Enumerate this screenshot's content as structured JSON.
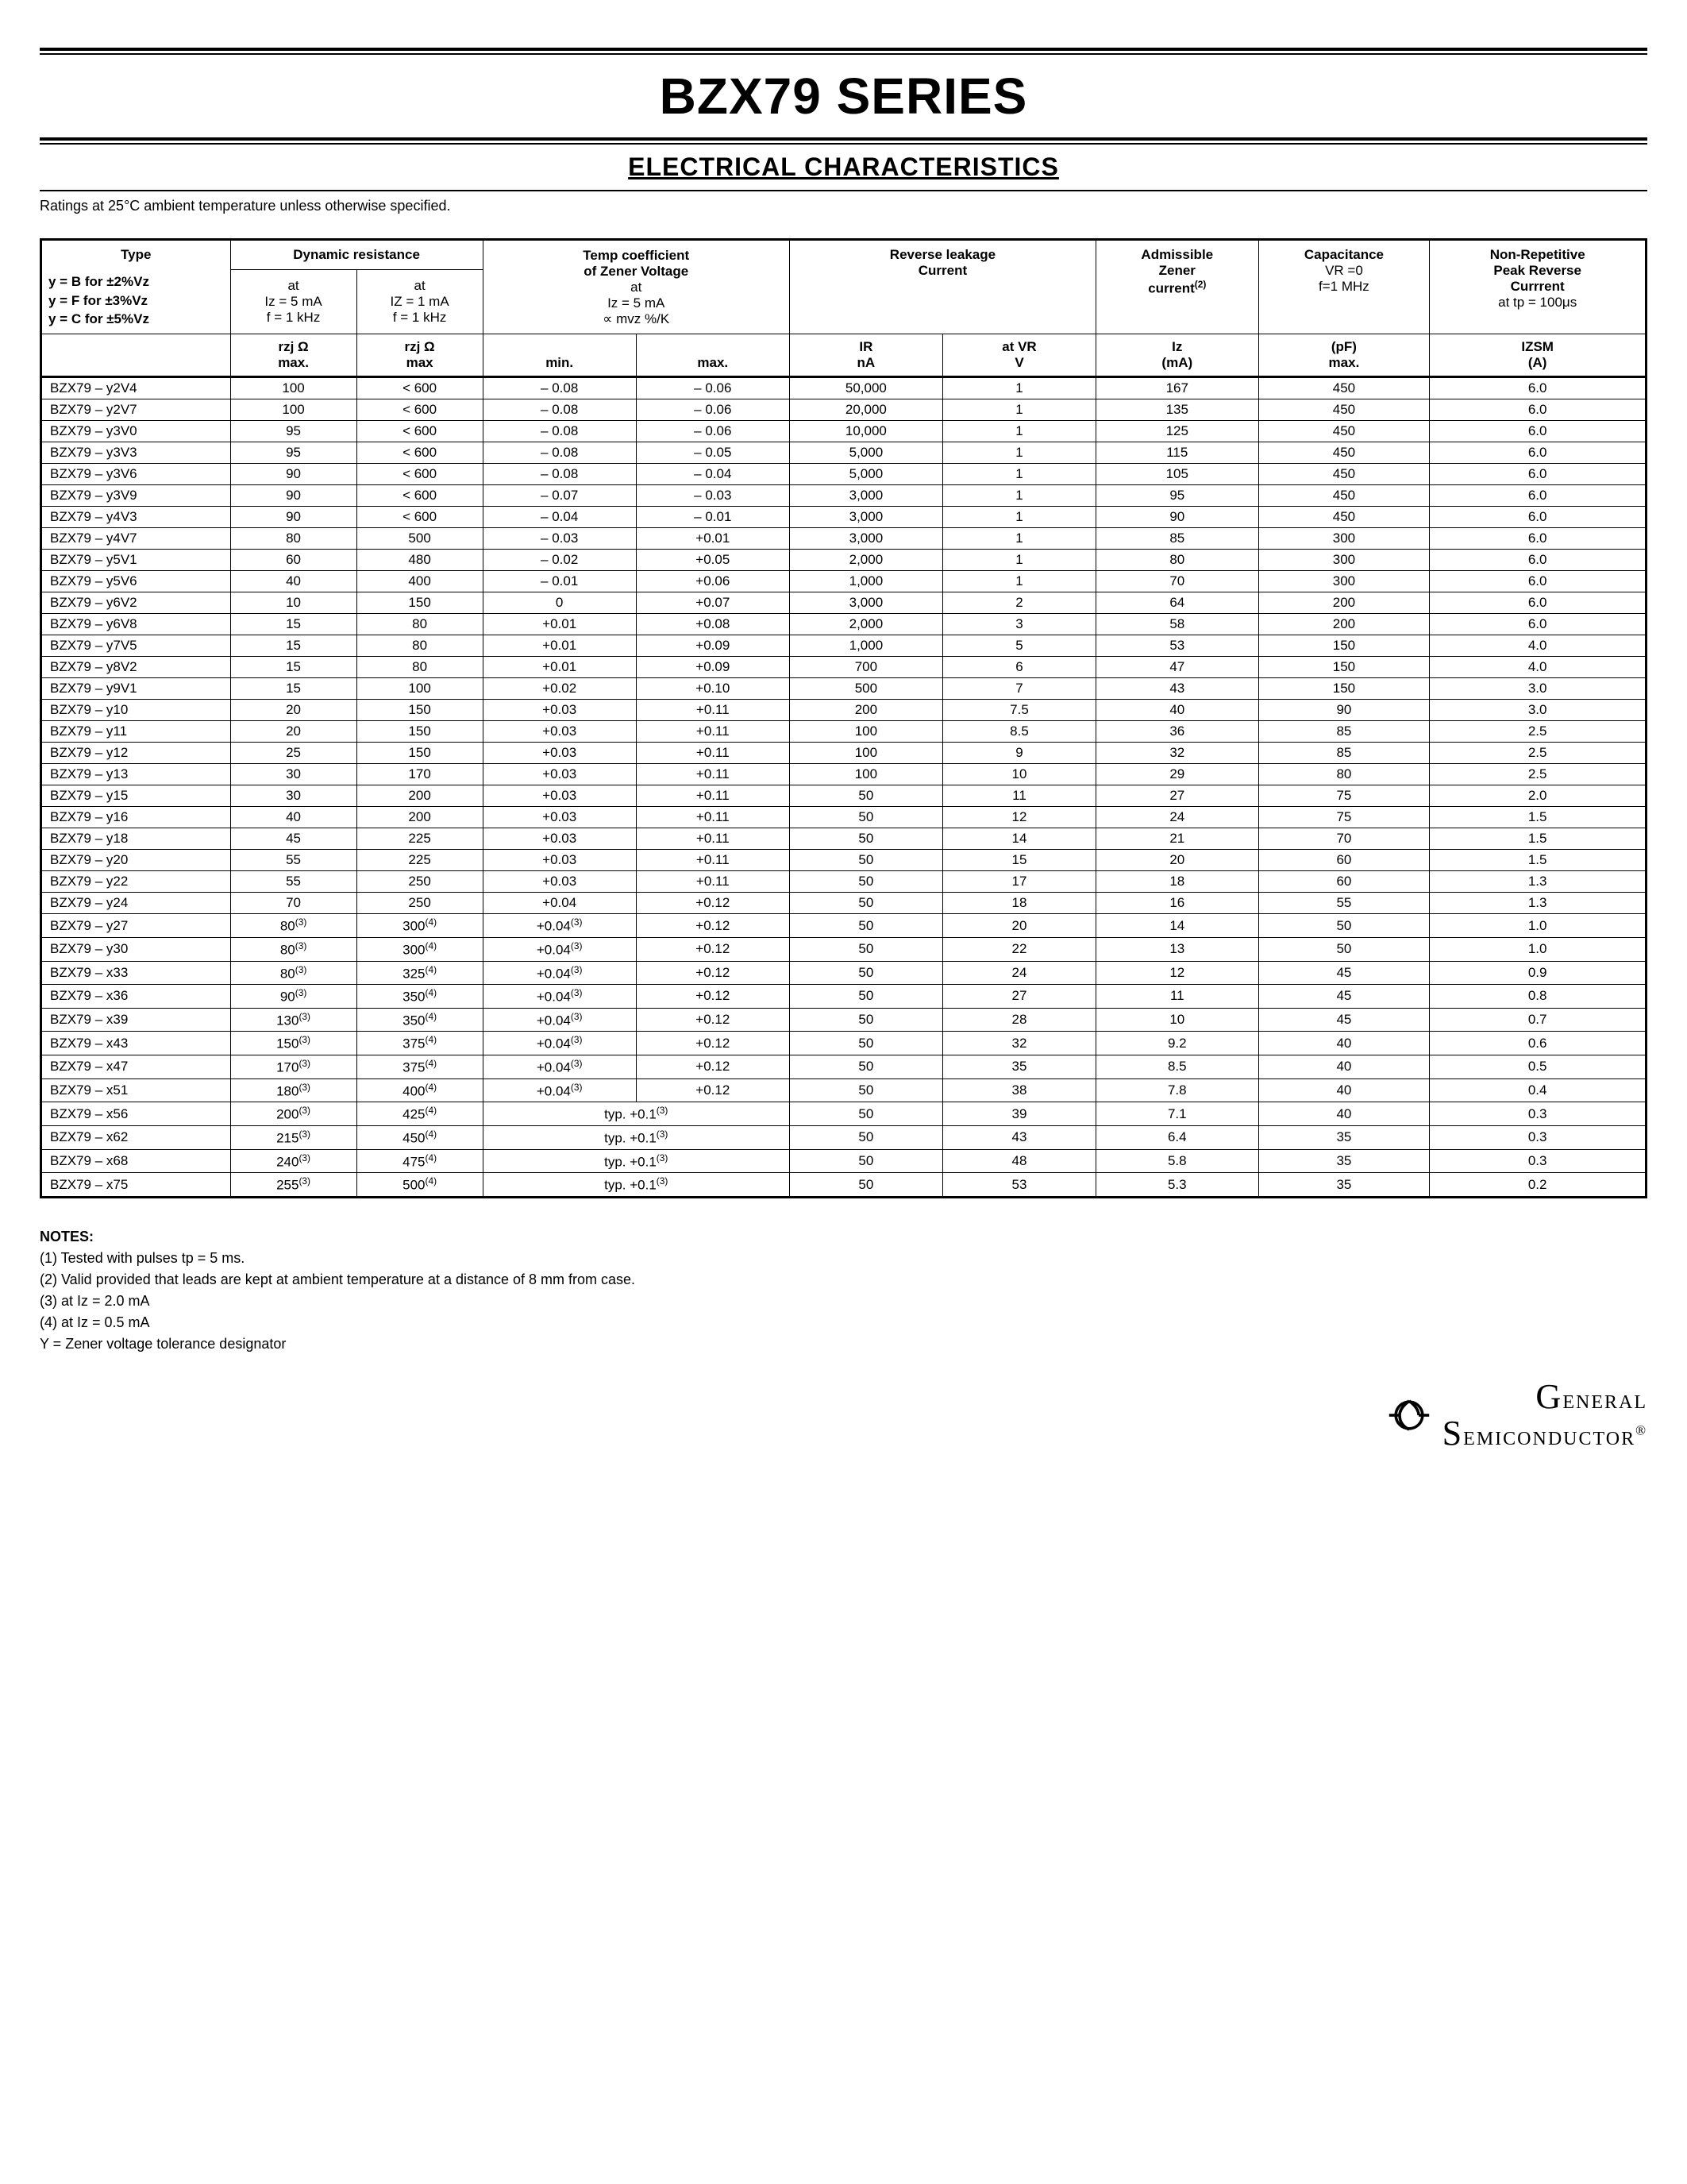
{
  "title": "BZX79 SERIES",
  "section": "ELECTRICAL CHARACTERISTICS",
  "ratingsNote": "Ratings at 25°C ambient temperature unless otherwise specified.",
  "headers": {
    "type": "Type",
    "typeLegend1": "y = B for ±2%Vz",
    "typeLegend2": "y = F for ±3%Vz",
    "typeLegend3": "y = C for ±5%Vz",
    "dynRes": "Dynamic resistance",
    "at5ma_l1": "at",
    "at5ma_l2": "Iz = 5 mA",
    "at5ma_l3": "f = 1 kHz",
    "at1ma_l1": "at",
    "at1ma_l2": "IZ = 1 mA",
    "at1ma_l3": "f = 1 kHz",
    "rzj": "rzj Ω",
    "max": "max",
    "tempCoef_l1": "Temp coefficient",
    "tempCoef_l2": "of Zener Voltage",
    "tempCoef_l3": "at",
    "tempCoef_l4": "Iz = 5 mA",
    "tempCoef_l5": "∝ mvz %/K",
    "min": "min.",
    "maxDot": "max.",
    "revLeak_l1": "Reverse leakage",
    "revLeak_l2": "Current",
    "ir_l1": "IR",
    "ir_l2": "nA",
    "vr_l1": "at VR",
    "vr_l2": "V",
    "admZener_l1": "Admissible",
    "admZener_l2": "Zener",
    "admZener_l3": "current",
    "admZener_sup": "(2)",
    "iz_l1": "Iz",
    "iz_l2": "(mA)",
    "cap_l1": "Capacitance",
    "cap_l2": "VR =0",
    "cap_l3": "f=1 MHz",
    "pf_l1": "(pF)",
    "pf_l2": "max.",
    "npr_l1": "Non-Repetitive",
    "npr_l2": "Peak Reverse",
    "npr_l3": "Currrent",
    "npr_l4": "at tp = 100μs",
    "izsm_l1": "IZSM",
    "izsm_l2": "(A)"
  },
  "rows": [
    {
      "type": "BZX79 – y2V4",
      "dr5": "100",
      "dr1": "< 600",
      "tcmin": "– 0.08",
      "tcmax": "– 0.06",
      "ir": "50,000",
      "vr": "1",
      "iz": "167",
      "pf": "450",
      "izsm": "6.0"
    },
    {
      "type": "BZX79 – y2V7",
      "dr5": "100",
      "dr1": "< 600",
      "tcmin": "– 0.08",
      "tcmax": "– 0.06",
      "ir": "20,000",
      "vr": "1",
      "iz": "135",
      "pf": "450",
      "izsm": "6.0"
    },
    {
      "type": "BZX79 – y3V0",
      "dr5": "95",
      "dr1": "< 600",
      "tcmin": "– 0.08",
      "tcmax": "– 0.06",
      "ir": "10,000",
      "vr": "1",
      "iz": "125",
      "pf": "450",
      "izsm": "6.0"
    },
    {
      "type": "BZX79 – y3V3",
      "dr5": "95",
      "dr1": "< 600",
      "tcmin": "– 0.08",
      "tcmax": "– 0.05",
      "ir": "5,000",
      "vr": "1",
      "iz": "115",
      "pf": "450",
      "izsm": "6.0"
    },
    {
      "type": "BZX79 – y3V6",
      "dr5": "90",
      "dr1": "< 600",
      "tcmin": "– 0.08",
      "tcmax": "– 0.04",
      "ir": "5,000",
      "vr": "1",
      "iz": "105",
      "pf": "450",
      "izsm": "6.0"
    },
    {
      "type": "BZX79 – y3V9",
      "dr5": "90",
      "dr1": "< 600",
      "tcmin": "– 0.07",
      "tcmax": "– 0.03",
      "ir": "3,000",
      "vr": "1",
      "iz": "95",
      "pf": "450",
      "izsm": "6.0"
    },
    {
      "type": "BZX79 – y4V3",
      "dr5": "90",
      "dr1": "< 600",
      "tcmin": "– 0.04",
      "tcmax": "– 0.01",
      "ir": "3,000",
      "vr": "1",
      "iz": "90",
      "pf": "450",
      "izsm": "6.0"
    },
    {
      "type": "BZX79 – y4V7",
      "dr5": "80",
      "dr1": "500",
      "tcmin": "– 0.03",
      "tcmax": "+0.01",
      "ir": "3,000",
      "vr": "1",
      "iz": "85",
      "pf": "300",
      "izsm": "6.0"
    },
    {
      "type": "BZX79 – y5V1",
      "dr5": "60",
      "dr1": "480",
      "tcmin": "– 0.02",
      "tcmax": "+0.05",
      "ir": "2,000",
      "vr": "1",
      "iz": "80",
      "pf": "300",
      "izsm": "6.0"
    },
    {
      "type": "BZX79 – y5V6",
      "dr5": "40",
      "dr1": "400",
      "tcmin": "– 0.01",
      "tcmax": "+0.06",
      "ir": "1,000",
      "vr": "1",
      "iz": "70",
      "pf": "300",
      "izsm": "6.0"
    },
    {
      "type": "BZX79 – y6V2",
      "dr5": "10",
      "dr1": "150",
      "tcmin": "0",
      "tcmax": "+0.07",
      "ir": "3,000",
      "vr": "2",
      "iz": "64",
      "pf": "200",
      "izsm": "6.0"
    },
    {
      "type": "BZX79 – y6V8",
      "dr5": "15",
      "dr1": "80",
      "tcmin": "+0.01",
      "tcmax": "+0.08",
      "ir": "2,000",
      "vr": "3",
      "iz": "58",
      "pf": "200",
      "izsm": "6.0"
    },
    {
      "type": "BZX79 – y7V5",
      "dr5": "15",
      "dr1": "80",
      "tcmin": "+0.01",
      "tcmax": "+0.09",
      "ir": "1,000",
      "vr": "5",
      "iz": "53",
      "pf": "150",
      "izsm": "4.0"
    },
    {
      "type": "BZX79 – y8V2",
      "dr5": "15",
      "dr1": "80",
      "tcmin": "+0.01",
      "tcmax": "+0.09",
      "ir": "700",
      "vr": "6",
      "iz": "47",
      "pf": "150",
      "izsm": "4.0"
    },
    {
      "type": "BZX79 – y9V1",
      "dr5": "15",
      "dr1": "100",
      "tcmin": "+0.02",
      "tcmax": "+0.10",
      "ir": "500",
      "vr": "7",
      "iz": "43",
      "pf": "150",
      "izsm": "3.0"
    },
    {
      "type": "BZX79 – y10",
      "dr5": "20",
      "dr1": "150",
      "tcmin": "+0.03",
      "tcmax": "+0.11",
      "ir": "200",
      "vr": "7.5",
      "iz": "40",
      "pf": "90",
      "izsm": "3.0"
    },
    {
      "type": "BZX79 – y11",
      "dr5": "20",
      "dr1": "150",
      "tcmin": "+0.03",
      "tcmax": "+0.11",
      "ir": "100",
      "vr": "8.5",
      "iz": "36",
      "pf": "85",
      "izsm": "2.5"
    },
    {
      "type": "BZX79 – y12",
      "dr5": "25",
      "dr1": "150",
      "tcmin": "+0.03",
      "tcmax": "+0.11",
      "ir": "100",
      "vr": "9",
      "iz": "32",
      "pf": "85",
      "izsm": "2.5"
    },
    {
      "type": "BZX79 – y13",
      "dr5": "30",
      "dr1": "170",
      "tcmin": "+0.03",
      "tcmax": "+0.11",
      "ir": "100",
      "vr": "10",
      "iz": "29",
      "pf": "80",
      "izsm": "2.5"
    },
    {
      "type": "BZX79 – y15",
      "dr5": "30",
      "dr1": "200",
      "tcmin": "+0.03",
      "tcmax": "+0.11",
      "ir": "50",
      "vr": "11",
      "iz": "27",
      "pf": "75",
      "izsm": "2.0"
    },
    {
      "type": "BZX79 – y16",
      "dr5": "40",
      "dr1": "200",
      "tcmin": "+0.03",
      "tcmax": "+0.11",
      "ir": "50",
      "vr": "12",
      "iz": "24",
      "pf": "75",
      "izsm": "1.5"
    },
    {
      "type": "BZX79 – y18",
      "dr5": "45",
      "dr1": "225",
      "tcmin": "+0.03",
      "tcmax": "+0.11",
      "ir": "50",
      "vr": "14",
      "iz": "21",
      "pf": "70",
      "izsm": "1.5"
    },
    {
      "type": "BZX79 – y20",
      "dr5": "55",
      "dr1": "225",
      "tcmin": "+0.03",
      "tcmax": "+0.11",
      "ir": "50",
      "vr": "15",
      "iz": "20",
      "pf": "60",
      "izsm": "1.5"
    },
    {
      "type": "BZX79 – y22",
      "dr5": "55",
      "dr1": "250",
      "tcmin": "+0.03",
      "tcmax": "+0.11",
      "ir": "50",
      "vr": "17",
      "iz": "18",
      "pf": "60",
      "izsm": "1.3"
    },
    {
      "type": "BZX79 – y24",
      "dr5": "70",
      "dr1": "250",
      "tcmin": "+0.04",
      "tcmax": "+0.12",
      "ir": "50",
      "vr": "18",
      "iz": "16",
      "pf": "55",
      "izsm": "1.3"
    },
    {
      "type": "BZX79 – y27",
      "dr5": "80",
      "dr5s": "(3)",
      "dr1": "300",
      "dr1s": "(4)",
      "tcmin": "+0.04",
      "tcmins": "(3)",
      "tcmax": "+0.12",
      "ir": "50",
      "vr": "20",
      "iz": "14",
      "pf": "50",
      "izsm": "1.0"
    },
    {
      "type": "BZX79 – y30",
      "dr5": "80",
      "dr5s": "(3)",
      "dr1": "300",
      "dr1s": "(4)",
      "tcmin": "+0.04",
      "tcmins": "(3)",
      "tcmax": "+0.12",
      "ir": "50",
      "vr": "22",
      "iz": "13",
      "pf": "50",
      "izsm": "1.0"
    },
    {
      "type": "BZX79 – x33",
      "dr5": "80",
      "dr5s": "(3)",
      "dr1": "325",
      "dr1s": "(4)",
      "tcmin": "+0.04",
      "tcmins": "(3)",
      "tcmax": "+0.12",
      "ir": "50",
      "vr": "24",
      "iz": "12",
      "pf": "45",
      "izsm": "0.9"
    },
    {
      "type": "BZX79 – x36",
      "dr5": "90",
      "dr5s": "(3)",
      "dr1": "350",
      "dr1s": "(4)",
      "tcmin": "+0.04",
      "tcmins": "(3)",
      "tcmax": "+0.12",
      "ir": "50",
      "vr": "27",
      "iz": "11",
      "pf": "45",
      "izsm": "0.8"
    },
    {
      "type": "BZX79 – x39",
      "dr5": "130",
      "dr5s": "(3)",
      "dr1": "350",
      "dr1s": "(4)",
      "tcmin": "+0.04",
      "tcmins": "(3)",
      "tcmax": "+0.12",
      "ir": "50",
      "vr": "28",
      "iz": "10",
      "pf": "45",
      "izsm": "0.7"
    },
    {
      "type": "BZX79 – x43",
      "dr5": "150",
      "dr5s": "(3)",
      "dr1": "375",
      "dr1s": "(4)",
      "tcmin": "+0.04",
      "tcmins": "(3)",
      "tcmax": "+0.12",
      "ir": "50",
      "vr": "32",
      "iz": "9.2",
      "pf": "40",
      "izsm": "0.6"
    },
    {
      "type": "BZX79 – x47",
      "dr5": "170",
      "dr5s": "(3)",
      "dr1": "375",
      "dr1s": "(4)",
      "tcmin": "+0.04",
      "tcmins": "(3)",
      "tcmax": "+0.12",
      "ir": "50",
      "vr": "35",
      "iz": "8.5",
      "pf": "40",
      "izsm": "0.5"
    },
    {
      "type": "BZX79 – x51",
      "dr5": "180",
      "dr5s": "(3)",
      "dr1": "400",
      "dr1s": "(4)",
      "tcmin": "+0.04",
      "tcmins": "(3)",
      "tcmax": "+0.12",
      "ir": "50",
      "vr": "38",
      "iz": "7.8",
      "pf": "40",
      "izsm": "0.4"
    },
    {
      "type": "BZX79 – x56",
      "dr5": "200",
      "dr5s": "(3)",
      "dr1": "425",
      "dr1s": "(4)",
      "tctyp": "typ. +0.1",
      "tctypsup": "(3)",
      "ir": "50",
      "vr": "39",
      "iz": "7.1",
      "pf": "40",
      "izsm": "0.3"
    },
    {
      "type": "BZX79 – x62",
      "dr5": "215",
      "dr5s": "(3)",
      "dr1": "450",
      "dr1s": "(4)",
      "tctyp": "typ. +0.1",
      "tctypsup": "(3)",
      "ir": "50",
      "vr": "43",
      "iz": "6.4",
      "pf": "35",
      "izsm": "0.3"
    },
    {
      "type": "BZX79 – x68",
      "dr5": "240",
      "dr5s": "(3)",
      "dr1": "475",
      "dr1s": "(4)",
      "tctyp": "typ. +0.1",
      "tctypsup": "(3)",
      "ir": "50",
      "vr": "48",
      "iz": "5.8",
      "pf": "35",
      "izsm": "0.3"
    },
    {
      "type": "BZX79 – x75",
      "dr5": "255",
      "dr5s": "(3)",
      "dr1": "500",
      "dr1s": "(4)",
      "tctyp": "typ. +0.1",
      "tctypsup": "(3)",
      "ir": "50",
      "vr": "53",
      "iz": "5.3",
      "pf": "35",
      "izsm": "0.2"
    }
  ],
  "notes": {
    "title": "NOTES:",
    "n1": "(1) Tested with pulses tp = 5 ms.",
    "n2": "(2) Valid provided that leads are kept at ambient temperature at a distance of 8 mm from case.",
    "n3": "(3) at Iz = 2.0 mA",
    "n4": "(4) at Iz = 0.5 mA",
    "n5": "Y = Zener voltage tolerance designator"
  },
  "logo": {
    "line1": "General",
    "line2": "Semiconductor",
    "reg": "®"
  }
}
